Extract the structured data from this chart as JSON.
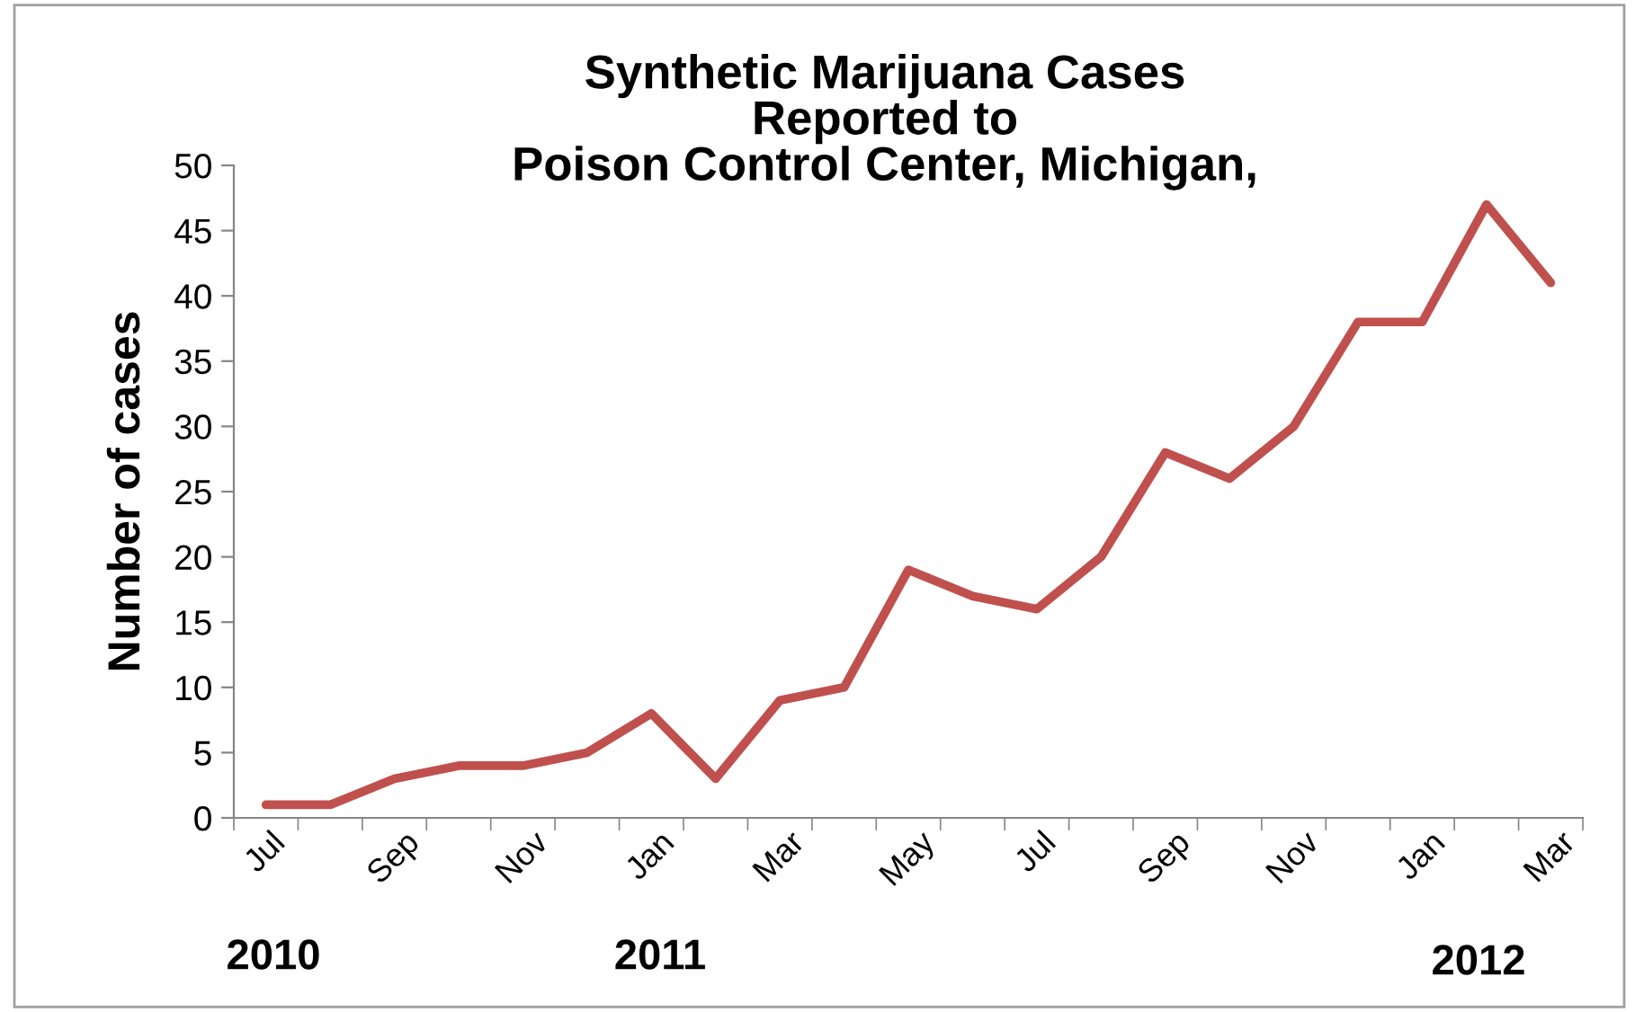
{
  "chart_data": {
    "type": "line",
    "title": "Synthetic Marijuana Cases\nReported to\nPoison Control Center, Michigan,",
    "ylabel": "Number of cases",
    "categories": [
      "Jul",
      null,
      "Sep",
      null,
      "Nov",
      null,
      "Jan",
      null,
      "Mar",
      null,
      "May",
      null,
      "Jul",
      null,
      "Sep",
      null,
      "Nov",
      null,
      "Jan",
      null,
      "Mar"
    ],
    "series": [
      {
        "color": "#c0504d",
        "values": [
          1,
          1,
          3,
          4,
          4,
          5,
          8,
          3,
          9,
          10,
          19,
          17,
          16,
          20,
          28,
          26,
          30,
          38,
          38,
          47,
          41
        ]
      }
    ],
    "ylim": [
      0,
      50
    ],
    "yticks": [
      0,
      5,
      10,
      15,
      20,
      25,
      30,
      35,
      40,
      45,
      50
    ],
    "grid": false,
    "legend": false,
    "marker": "none",
    "line_style": "solid",
    "annotations": [
      "2010",
      "2011",
      "2012"
    ]
  }
}
